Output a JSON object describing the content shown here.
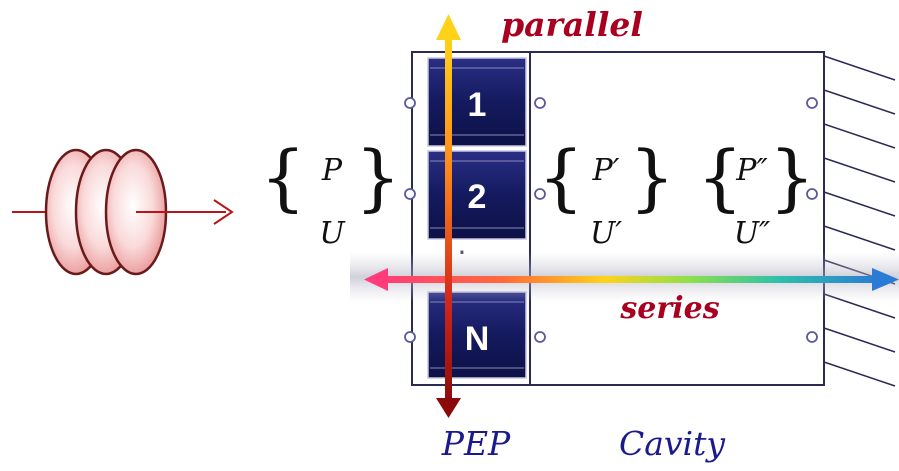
{
  "labels": {
    "parallel": "parallel",
    "series": "series",
    "pep": "PEP",
    "cavity": "Cavity"
  },
  "cells": [
    "1",
    "2",
    "N"
  ],
  "cell_dots": "·",
  "vectors": {
    "input": {
      "top": "P",
      "bottom": "U"
    },
    "pep_out": {
      "top": "P′",
      "bottom": "U′"
    },
    "cavity_out": {
      "top": "P″",
      "bottom": "U″"
    }
  },
  "colors": {
    "cell_fill": "#13175e",
    "cavity_border": "#2a2a55",
    "caption": "#1a1a8c",
    "label_bold": "#a8001e",
    "disc_fill": "#f7c4c4",
    "input_arrow": "#b4161c"
  }
}
